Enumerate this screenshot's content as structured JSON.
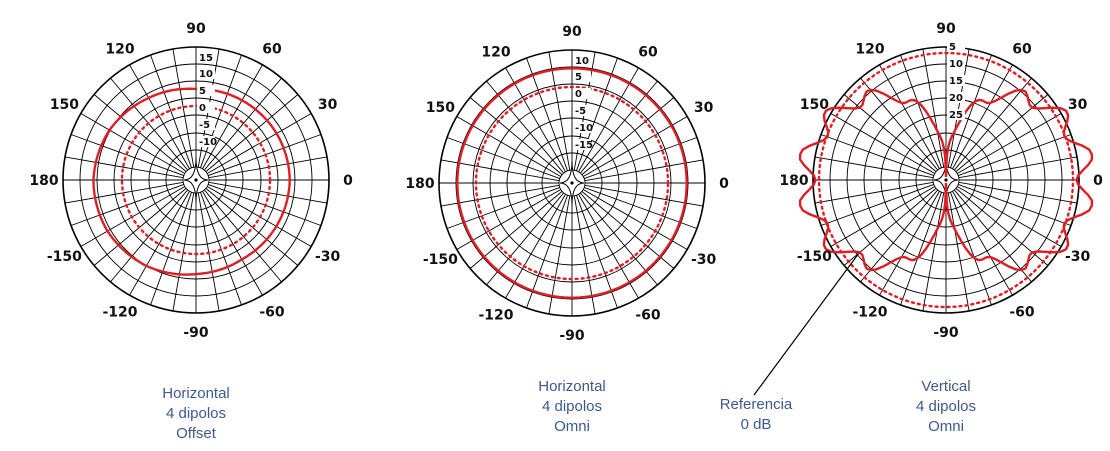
{
  "angle_labels": [
    "0",
    "30",
    "60",
    "90",
    "120",
    "150",
    "180",
    "-150",
    "-120",
    "-90",
    "-60",
    "-30"
  ],
  "colors": {
    "pattern": "#dd1f26",
    "grid": "#000000",
    "caption": "#3d5a8a"
  },
  "charts": [
    {
      "caption": [
        "Horizontal",
        "4 dipolos",
        "Offset"
      ],
      "radial_labels": [
        "15",
        "10",
        "5",
        "0",
        "-5",
        "-10"
      ]
    },
    {
      "caption": [
        "Horizontal",
        "4 dipolos",
        "Omni"
      ],
      "radial_labels": [
        "10",
        "5",
        "0",
        "-5",
        "-10",
        "-15"
      ]
    },
    {
      "caption": [
        "Vertical",
        "4 dipolos",
        "Omni"
      ],
      "radial_labels": [
        "5",
        "10",
        "15",
        "20",
        "25"
      ]
    }
  ],
  "annotation": {
    "lines": [
      "Referencia",
      "0 dB"
    ]
  },
  "chart_data": [
    {
      "type": "polar",
      "title": "Horizontal 4 dipolos Offset",
      "angle_ticks_deg": [
        0,
        30,
        60,
        90,
        120,
        150,
        180,
        -150,
        -120,
        -90,
        -60,
        -30
      ],
      "radial_ticks_db": [
        15,
        10,
        5,
        0,
        -5,
        -10
      ],
      "reference_db": 0,
      "series": [
        {
          "name": "Horizontal 4 dipolos Offset",
          "style": "solid",
          "angles_deg": [
            0,
            30,
            60,
            90,
            120,
            150,
            180,
            -150,
            -120,
            -90,
            -60,
            -30
          ],
          "values_db": [
            5.8,
            5.6,
            5.3,
            5.0,
            6.1,
            7.6,
            8.4,
            8.3,
            7.4,
            5.9,
            5.2,
            5.5
          ]
        },
        {
          "name": "Referencia 0 dB",
          "style": "dotted",
          "constant_db": 0
        }
      ]
    },
    {
      "type": "polar",
      "title": "Horizontal 4 dipolos Omni",
      "angle_ticks_deg": [
        0,
        30,
        60,
        90,
        120,
        150,
        180,
        -150,
        -120,
        -90,
        -60,
        -30
      ],
      "radial_ticks_db": [
        10,
        5,
        0,
        -5,
        -10,
        -15
      ],
      "reference_db": 0,
      "series": [
        {
          "name": "Horizontal 4 dipolos Omni",
          "style": "solid",
          "constant_db": 5.5
        },
        {
          "name": "Referencia 0 dB",
          "style": "dotted",
          "constant_db": 0
        }
      ]
    },
    {
      "type": "polar",
      "title": "Vertical 4 dipolos Omni",
      "angle_ticks_deg": [
        0,
        30,
        60,
        90,
        120,
        150,
        180,
        -150,
        -120,
        -90,
        -60,
        -30
      ],
      "radial_ticks_db_below_max": [
        5,
        10,
        15,
        20,
        25
      ],
      "series": [
        {
          "name": "Vertical 4 dipolos Omni",
          "style": "solid",
          "pattern": "main lobes at 0 and 180 deg, nulls near 90 and -90 deg, ripple lobes every ~20 deg"
        },
        {
          "name": "Referencia 0 dB",
          "style": "dotted",
          "constant_db": 0
        }
      ]
    }
  ]
}
